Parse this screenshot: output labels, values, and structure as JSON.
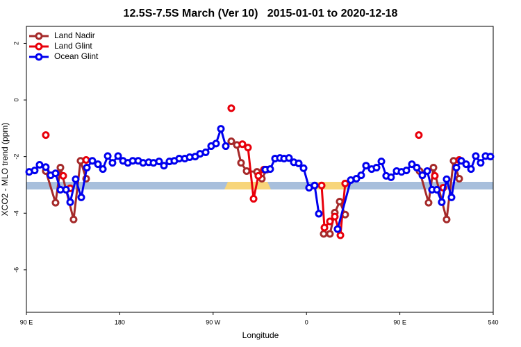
{
  "chart_data": {
    "type": "line",
    "title": "12.5S-7.5S March (Ver 10)   2015-01-01 to 2020-12-18",
    "xlabel": "Longitude",
    "ylabel": "XCO2 - MLO trend (ppm)",
    "xlim": [
      90,
      540
    ],
    "ylim": [
      -7.5,
      2.6
    ],
    "xticks": [
      {
        "value": 90,
        "label": "90 E"
      },
      180,
      {
        "value": 270,
        "label": "90 W"
      },
      {
        "value": 360,
        "label": "0"
      },
      {
        "value": 450,
        "label": "90 E"
      },
      540
    ],
    "yticks": [
      2,
      0,
      -2,
      -4,
      -6
    ],
    "legend": "top-left",
    "series": [
      {
        "name": "Land Nadir",
        "color": "#a52a2a",
        "x": [
          108.7,
          118.1,
          122.8,
          135.5,
          142.2,
          147.6,
          null,
          287.5,
          292.9,
          296.9,
          302.3,
          312.3,
          317.0,
          321.7,
          null,
          376.6,
          382.6,
          387.3,
          392.0,
          397.3,
          null,
          469.0,
          477.7,
          482.4,
          495.1,
          501.8,
          507.2
        ],
        "values": [
          -2.51,
          -3.63,
          -2.39,
          -4.22,
          -2.15,
          -2.78,
          null,
          -1.46,
          -1.59,
          -2.22,
          -2.51,
          -2.54,
          -2.78,
          -2.46,
          null,
          -4.73,
          -4.73,
          -3.98,
          -3.59,
          -4.05,
          null,
          -2.51,
          -3.63,
          -2.39,
          -4.22,
          -2.15,
          -2.78
        ]
      },
      {
        "name": "Land Glint",
        "color": "#e8000b",
        "x": [
          108.7,
          null,
          125.5,
          null,
          132.2,
          null,
          147.6,
          null,
          287.5,
          null,
          298.2,
          303.6,
          309.0,
          313.6,
          319.0,
          null,
          374.6,
          377.3,
          382.6,
          387.3,
          392.7,
          397.3,
          null,
          468.3,
          null,
          483.7,
          null,
          491.8,
          null,
          507.2
        ],
        "values": [
          -1.24,
          null,
          -2.68,
          null,
          -3.12,
          null,
          -2.12,
          null,
          -0.29,
          null,
          -1.56,
          -1.68,
          -3.49,
          -2.68,
          -2.46,
          null,
          -3.02,
          -4.51,
          -4.29,
          -4.12,
          -4.78,
          -2.95,
          null,
          -1.24,
          null,
          -2.68,
          null,
          -3.1,
          null,
          -2.12
        ]
      },
      {
        "name": "Ocean Glint",
        "color": "#0000ee",
        "x": [
          92.7,
          98.0,
          102.7,
          108.7,
          113.4,
          118.1,
          122.8,
          128.2,
          132.2,
          137.5,
          142.9,
          148.3,
          153.6,
          159.0,
          163.7,
          168.4,
          173.0,
          178.4,
          183.1,
          187.8,
          192.5,
          197.8,
          202.5,
          207.9,
          212.5,
          217.9,
          222.6,
          227.9,
          232.6,
          237.3,
          242.7,
          247.4,
          252.7,
          257.4,
          262.8,
          268.1,
          272.8,
          277.5,
          282.2,
          null,
          320.3,
          325.0,
          329.7,
          334.4,
          338.4,
          343.1,
          347.8,
          352.5,
          357.2,
          362.5,
          367.9,
          371.9,
          null,
          390.0,
          402.7,
          408.1,
          412.7,
          417.4,
          422.8,
          427.5,
          432.2,
          436.8,
          441.5,
          446.9,
          451.6,
          456.3,
          461.6,
          466.3,
          471.7,
          476.4,
          481.0,
          485.7,
          490.4,
          495.1,
          499.8,
          504.5,
          509.2,
          513.9,
          518.6,
          523.2,
          527.9,
          532.6,
          537.3
        ],
        "values": [
          -2.54,
          -2.49,
          -2.29,
          -2.37,
          -2.66,
          -2.59,
          -3.17,
          -3.17,
          -3.61,
          -2.8,
          -3.44,
          -2.39,
          -2.15,
          -2.27,
          -2.44,
          -1.98,
          -2.22,
          -1.98,
          -2.15,
          -2.22,
          -2.15,
          -2.15,
          -2.22,
          -2.2,
          -2.22,
          -2.17,
          -2.32,
          -2.17,
          -2.15,
          -2.07,
          -2.07,
          -2.02,
          -2.0,
          -1.9,
          -1.85,
          -1.63,
          -1.54,
          -1.02,
          -1.63,
          null,
          -2.46,
          -2.44,
          -2.07,
          -2.05,
          -2.07,
          -2.05,
          -2.2,
          -2.24,
          -2.41,
          -3.1,
          -3.02,
          -4.02,
          null,
          -4.56,
          -2.83,
          -2.78,
          -2.66,
          -2.32,
          -2.44,
          -2.39,
          -2.17,
          -2.68,
          -2.73,
          -2.51,
          -2.54,
          -2.49,
          -2.27,
          -2.39,
          -2.66,
          -2.51,
          -3.17,
          -3.17,
          -3.61,
          -2.8,
          -3.44,
          -2.39,
          -2.15,
          -2.27,
          -2.44,
          -1.98,
          -2.22,
          -1.98,
          -2.0
        ]
      }
    ]
  }
}
